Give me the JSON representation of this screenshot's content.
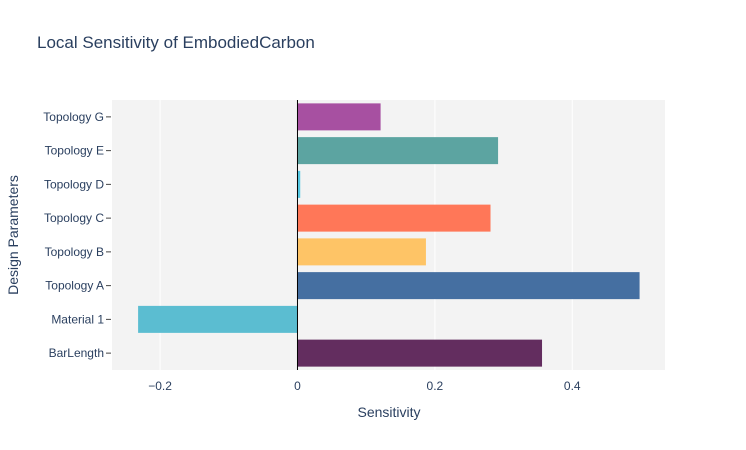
{
  "chart_data": {
    "type": "bar",
    "orientation": "horizontal",
    "title": "Local Sensitivity of EmbodiedCarbon",
    "xlabel": "Sensitivity",
    "ylabel": "Design Parameters",
    "categories": [
      "BarLength",
      "Material 1",
      "Topology A",
      "Topology B",
      "Topology C",
      "Topology D",
      "Topology E",
      "Topology G"
    ],
    "values": [
      0.356,
      -0.232,
      0.498,
      0.187,
      0.281,
      0.004,
      0.292,
      0.121
    ],
    "colors": [
      "#632d5f",
      "#5bbdd1",
      "#456fa1",
      "#fec466",
      "#ff7758",
      "#55c8e2",
      "#5ca4a1",
      "#a750a1"
    ],
    "xlim": [
      -0.27,
      0.535
    ],
    "xticks": [
      -0.2,
      0,
      0.2,
      0.4
    ],
    "xtick_labels": [
      "−0.2",
      "0",
      "0.2",
      "0.4"
    ],
    "grid": true,
    "plot_background": "#f3f3f3"
  }
}
